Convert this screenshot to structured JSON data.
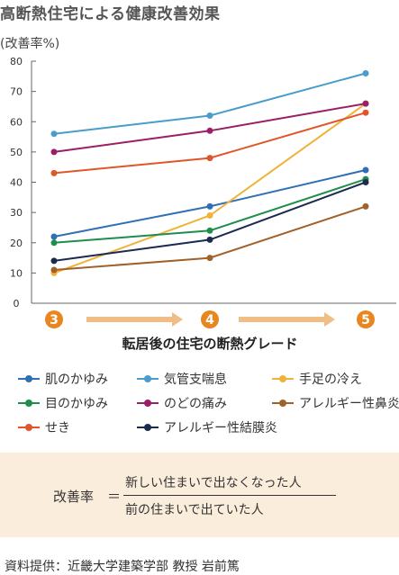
{
  "title": "高断熱住宅による健康改善効果",
  "unit_label": "(改善率%)",
  "chart_data": {
    "type": "line",
    "xlabel": "転居後の住宅の断熱グレード",
    "ylabel": "(改善率%)",
    "x": [
      "3",
      "4",
      "5"
    ],
    "ylim": [
      0,
      80
    ],
    "yticks": [
      0,
      10,
      20,
      30,
      40,
      50,
      60,
      70,
      80
    ],
    "grid": false,
    "legend_position": "bottom",
    "series": [
      {
        "name": "肌のかゆみ",
        "color": "#2f6fb5",
        "values": [
          22,
          32,
          44
        ]
      },
      {
        "name": "気管支喘息",
        "color": "#4a9cca",
        "values": [
          56,
          62,
          76
        ]
      },
      {
        "name": "手足の冷え",
        "color": "#f0b33a",
        "values": [
          10,
          29,
          66
        ]
      },
      {
        "name": "目のかゆみ",
        "color": "#1f8e4d",
        "values": [
          20,
          24,
          41
        ]
      },
      {
        "name": "のどの痛み",
        "color": "#9b1f66",
        "values": [
          50,
          57,
          66
        ]
      },
      {
        "name": "アレルギー性鼻炎",
        "color": "#a0612a",
        "values": [
          11,
          15,
          32
        ]
      },
      {
        "name": "せき",
        "color": "#e0562a",
        "values": [
          43,
          48,
          63
        ]
      },
      {
        "name": "アレルギー性結膜炎",
        "color": "#1c2a50",
        "values": [
          14,
          21,
          40
        ]
      }
    ]
  },
  "grade_badge_color": "#e8861f",
  "grade_arrow_color": "#f0bd86",
  "formula": {
    "label": "改善率",
    "equals": "＝",
    "numerator": "新しい住まいで出なくなった人",
    "denominator": "前の住まいで出ていた人"
  },
  "source": "資料提供：近畿大学建築学部 教授 岩前篤"
}
